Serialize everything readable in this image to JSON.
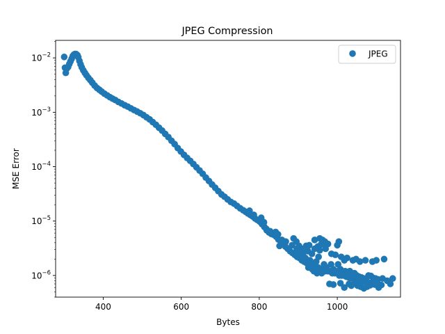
{
  "chart_data": {
    "type": "scatter",
    "title": "JPEG Compression",
    "xlabel": "Bytes",
    "ylabel": "MSE Error",
    "xlim": [
      278,
      1162
    ],
    "ylim": [
      4e-07,
      0.021
    ],
    "yscale": "log",
    "xticks": [
      400,
      600,
      800,
      1000
    ],
    "yticks": [
      {
        "value": 1e-06,
        "label_base": "10",
        "label_exp": "−6"
      },
      {
        "value": 1e-05,
        "label_base": "10",
        "label_exp": "−5"
      },
      {
        "value": 0.0001,
        "label_base": "10",
        "label_exp": "−4"
      },
      {
        "value": 0.001,
        "label_base": "10",
        "label_exp": "−3"
      },
      {
        "value": 0.01,
        "label_base": "10",
        "label_exp": "−2"
      }
    ],
    "grid": false,
    "legend_position": "top-right",
    "series": [
      {
        "name": "JPEG",
        "color": "#1f77b4",
        "points": [
          [
            300,
            0.0104
          ],
          [
            302,
            0.0066
          ],
          [
            304,
            0.0053
          ],
          [
            307,
            0.0064
          ],
          [
            310,
            0.0068
          ],
          [
            313,
            0.0077
          ],
          [
            316,
            0.0086
          ],
          [
            319,
            0.0096
          ],
          [
            322,
            0.0108
          ],
          [
            325,
            0.0115
          ],
          [
            328,
            0.0118
          ],
          [
            331,
            0.0117
          ],
          [
            334,
            0.0112
          ],
          [
            336,
            0.0103
          ],
          [
            339,
            0.0088
          ],
          [
            342,
            0.0076
          ],
          [
            345,
            0.0067
          ],
          [
            349,
            0.0059
          ],
          [
            353,
            0.0053
          ],
          [
            357,
            0.0048
          ],
          [
            362,
            0.0043
          ],
          [
            367,
            0.0039
          ],
          [
            372,
            0.0035
          ],
          [
            378,
            0.0031
          ],
          [
            384,
            0.0028
          ],
          [
            390,
            0.0026
          ],
          [
            396,
            0.0024
          ],
          [
            403,
            0.0022
          ],
          [
            410,
            0.00205
          ],
          [
            417,
            0.0019
          ],
          [
            424,
            0.00178
          ],
          [
            431,
            0.00168
          ],
          [
            439,
            0.00155
          ],
          [
            447,
            0.00145
          ],
          [
            455,
            0.00135
          ],
          [
            463,
            0.00127
          ],
          [
            471,
            0.00118
          ],
          [
            479,
            0.0011
          ],
          [
            487,
            0.00103
          ],
          [
            495,
            0.00096
          ],
          [
            503,
            0.00089
          ],
          [
            511,
            0.00081
          ],
          [
            519,
            0.00074
          ],
          [
            527,
            0.00066
          ],
          [
            535,
            0.00059
          ],
          [
            543,
            0.00052
          ],
          [
            551,
            0.00046
          ],
          [
            559,
            0.0004
          ],
          [
            567,
            0.00035
          ],
          [
            575,
            0.0003
          ],
          [
            583,
            0.00026
          ],
          [
            591,
            0.00022
          ],
          [
            599,
            0.00019
          ],
          [
            607,
            0.000165
          ],
          [
            615,
            0.000145
          ],
          [
            623,
            0.000128
          ],
          [
            631,
            0.000112
          ],
          [
            639,
            9.75e-05
          ],
          [
            647,
            8.5e-05
          ],
          [
            655,
            7.4e-05
          ],
          [
            663,
            6.3e-05
          ],
          [
            671,
            5.45e-05
          ],
          [
            679,
            4.7e-05
          ],
          [
            687,
            4.1e-05
          ],
          [
            695,
            3.55e-05
          ],
          [
            703,
            3.1e-05
          ],
          [
            711,
            2.8e-05
          ],
          [
            719,
            2.5e-05
          ],
          [
            727,
            2.25e-05
          ],
          [
            735,
            2.1e-05
          ],
          [
            743,
            1.9e-05
          ],
          [
            751,
            1.72e-05
          ],
          [
            759,
            1.58e-05
          ],
          [
            765,
            1.48e-05
          ],
          [
            771,
            1.38e-05
          ],
          [
            777,
            1.3e-05
          ],
          [
            783,
            1.22e-05
          ],
          [
            789,
            1.12e-05
          ],
          [
            795,
            1.05e-05
          ],
          [
            801,
            9.8e-06
          ],
          [
            807,
            8.8e-06
          ],
          [
            813,
            7.8e-06
          ],
          [
            819,
            6.8e-06
          ],
          [
            825,
            6.2e-06
          ],
          [
            831,
            5.8e-06
          ],
          [
            837,
            5.6e-06
          ],
          [
            843,
            5.2e-06
          ],
          [
            849,
            4.6e-06
          ],
          [
            855,
            4.2e-06
          ],
          [
            861,
            3.8e-06
          ],
          [
            867,
            3.4e-06
          ],
          [
            873,
            3.1e-06
          ],
          [
            879,
            2.8e-06
          ],
          [
            885,
            2.6e-06
          ],
          [
            891,
            2.4e-06
          ],
          [
            897,
            2.2e-06
          ],
          [
            903,
            2.1e-06
          ],
          [
            909,
            1.9e-06
          ],
          [
            915,
            1.8e-06
          ],
          [
            921,
            1.7e-06
          ],
          [
            927,
            1.6e-06
          ],
          [
            933,
            1.5e-06
          ],
          [
            939,
            1.5e-06
          ],
          [
            945,
            1.4e-06
          ],
          [
            951,
            1.4e-06
          ],
          [
            957,
            1.3e-06
          ],
          [
            963,
            1.3e-06
          ],
          [
            969,
            1.2e-06
          ],
          [
            975,
            1.2e-06
          ],
          [
            981,
            1.2e-06
          ],
          [
            987,
            1.1e-06
          ],
          [
            993,
            1.1e-06
          ],
          [
            999,
            1.1e-06
          ],
          [
            1005,
            1e-06
          ],
          [
            1011,
            1e-06
          ],
          [
            1017,
            1e-06
          ],
          [
            1023,
            9.5e-07
          ],
          [
            1029,
            9.2e-07
          ],
          [
            1035,
            9e-07
          ],
          [
            1041,
            8.8e-07
          ],
          [
            1047,
            8.5e-07
          ],
          [
            1053,
            8.2e-07
          ],
          [
            1059,
            8e-07
          ],
          [
            1065,
            7.8e-07
          ],
          [
            1071,
            7.6e-07
          ],
          [
            1077,
            7.5e-07
          ],
          [
            1083,
            7.3e-07
          ],
          [
            1089,
            7.2e-07
          ],
          [
            1095,
            7e-07
          ],
          [
            1101,
            6.9e-07
          ],
          [
            1107,
            6.8e-07
          ],
          [
            1113,
            6.7e-07
          ],
          [
            775,
            1.55e-05
          ],
          [
            786,
            1.3e-05
          ],
          [
            805,
            1.15e-05
          ],
          [
            812,
            9.5e-06
          ],
          [
            818,
            7.2e-06
          ],
          [
            828,
            6.5e-06
          ],
          [
            842,
            6.3e-06
          ],
          [
            848,
            5.7e-06
          ],
          [
            852,
            3.5e-06
          ],
          [
            858,
            4.5e-06
          ],
          [
            868,
            4.2e-06
          ],
          [
            884,
            3.6e-06
          ],
          [
            896,
            2.8e-06
          ],
          [
            905,
            3.2e-06
          ],
          [
            912,
            2.4e-06
          ],
          [
            918,
            2.1e-06
          ],
          [
            930,
            1.9e-06
          ],
          [
            938,
            1.6e-06
          ],
          [
            946,
            1.8e-06
          ],
          [
            954,
            1.3e-06
          ],
          [
            960,
            1.1e-06
          ],
          [
            966,
            1.6e-06
          ],
          [
            972,
            1.4e-06
          ],
          [
            978,
            1.2e-06
          ],
          [
            984,
            1.6e-06
          ],
          [
            990,
            1.3e-06
          ],
          [
            996,
            1.2e-06
          ],
          [
            1002,
            1.6e-06
          ],
          [
            1008,
            1.3e-06
          ],
          [
            1014,
            1.1e-06
          ],
          [
            1020,
            1.2e-06
          ],
          [
            1026,
            1.1e-06
          ],
          [
            1032,
            1.2e-06
          ],
          [
            1038,
            1e-06
          ],
          [
            1044,
            1.1e-06
          ],
          [
            1050,
            1e-06
          ],
          [
            1056,
            9.5e-07
          ],
          [
            1062,
            9.2e-07
          ],
          [
            1068,
            8.8e-07
          ],
          [
            1074,
            8.2e-07
          ],
          [
            1080,
            1e-06
          ],
          [
            1086,
            9.8e-07
          ],
          [
            1092,
            9e-07
          ],
          [
            1098,
            8.8e-07
          ],
          [
            1104,
            8.5e-07
          ],
          [
            888,
            4.8e-06
          ],
          [
            895,
            4.2e-06
          ],
          [
            902,
            3.5e-06
          ],
          [
            920,
            3.5e-06
          ],
          [
            925,
            2.8e-06
          ],
          [
            935,
            2.5e-06
          ],
          [
            942,
            3.1e-06
          ],
          [
            950,
            3.4e-06
          ],
          [
            955,
            2.9e-06
          ],
          [
            958,
            3.7e-06
          ],
          [
            962,
            3.8e-06
          ],
          [
            970,
            3.1e-06
          ],
          [
            985,
            2.5e-06
          ],
          [
            995,
            2.4e-06
          ],
          [
            1000,
            3.6e-06
          ],
          [
            1004,
            4.2e-06
          ],
          [
            1010,
            2.2e-06
          ],
          [
            1018,
            1.9e-06
          ],
          [
            1025,
            2.1e-06
          ],
          [
            1040,
            1.9e-06
          ],
          [
            1048,
            2e-06
          ],
          [
            1058,
            1.8e-06
          ],
          [
            1072,
            1.9e-06
          ],
          [
            1090,
            1.8e-06
          ],
          [
            1100,
            1.9e-06
          ],
          [
            1120,
            2e-06
          ],
          [
            1136,
            7e-07
          ],
          [
            1142,
            8.8e-07
          ],
          [
            1128,
            8e-07
          ],
          [
            1116,
            8.8e-07
          ],
          [
            1060,
            6.2e-07
          ],
          [
            1068,
            5.8e-07
          ],
          [
            1052,
            6.5e-07
          ],
          [
            1045,
            7.5e-07
          ],
          [
            1036,
            6.5e-07
          ],
          [
            1030,
            7e-07
          ],
          [
            1008,
            7.2e-07
          ],
          [
            990,
            6.8e-07
          ],
          [
            980,
            7e-07
          ],
          [
            1076,
            6.2e-07
          ],
          [
            1084,
            6.6e-07
          ],
          [
            1096,
            6.8e-07
          ],
          [
            1106,
            6e-07
          ],
          [
            1018,
            6e-07
          ],
          [
            1002,
            1.2e-06
          ],
          [
            942,
            4.5e-06
          ],
          [
            955,
            4.8e-06
          ],
          [
            962,
            4.5e-06
          ],
          [
            976,
            3.8e-06
          ],
          [
            968,
            4.2e-06
          ],
          [
            952,
            2.2e-06
          ],
          [
            928,
            3.6e-06
          ],
          [
            915,
            2.9e-06
          ],
          [
            908,
            2.5e-06
          ],
          [
            896,
            3.1e-06
          ],
          [
            958,
            1.2e-06
          ],
          [
            948,
            1.1e-06
          ],
          [
            936,
            1.3e-06
          ],
          [
            940,
            1.2e-06
          ],
          [
            926,
            1.4e-06
          ]
        ]
      }
    ]
  }
}
